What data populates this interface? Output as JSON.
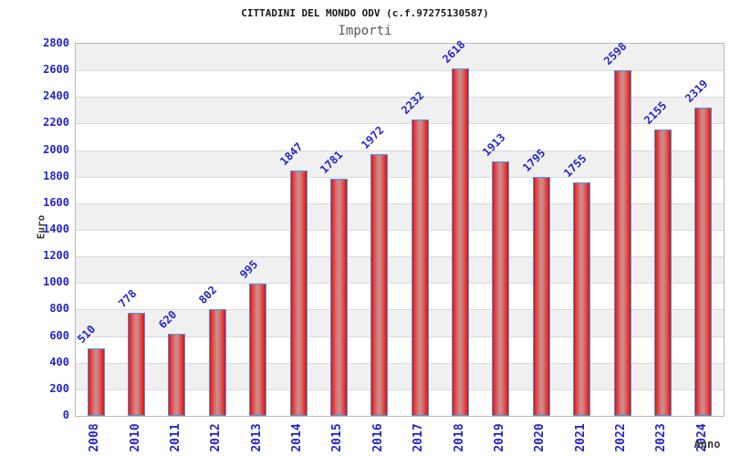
{
  "header": {
    "title": "CITTADINI DEL MONDO ODV (c.f.97275130587)",
    "subtitle": "Importi"
  },
  "axes": {
    "y_title": "Euro",
    "x_title": "Anno"
  },
  "chart_data": {
    "type": "bar",
    "title": "CITTADINI DEL MONDO ODV (c.f.97275130587)",
    "subtitle": "Importi",
    "xlabel": "Anno",
    "ylabel": "Euro",
    "categories": [
      "2008",
      "2010",
      "2011",
      "2012",
      "2013",
      "2014",
      "2015",
      "2016",
      "2017",
      "2018",
      "2019",
      "2020",
      "2021",
      "2022",
      "2023",
      "2024"
    ],
    "values": [
      510,
      778,
      620,
      802,
      995,
      1847,
      1781,
      1972,
      2232,
      2618,
      1913,
      1795,
      1755,
      2598,
      2155,
      2319
    ],
    "ylim": [
      0,
      2800
    ],
    "ytick_step": 200,
    "grid": true,
    "legend_position": "none",
    "value_labels_rotation_deg": -45,
    "category_labels_rotation_deg": -90,
    "colors": {
      "label_blue": "#2424cc",
      "bar_edge_red": "#dc0f0f",
      "bar_center_highlight": "#cf8f8f",
      "bar_border_blue": "#4a95e0",
      "band_gray": "#f0f0f0",
      "band_white": "#ffffff",
      "gridline_gray": "#d9d9d9",
      "plot_border_gray": "#b9b9b9",
      "axis_title_gray": "#3a3a3a",
      "title_black": "#1a1a1a",
      "subtitle_gray": "#5a5a5a"
    }
  }
}
